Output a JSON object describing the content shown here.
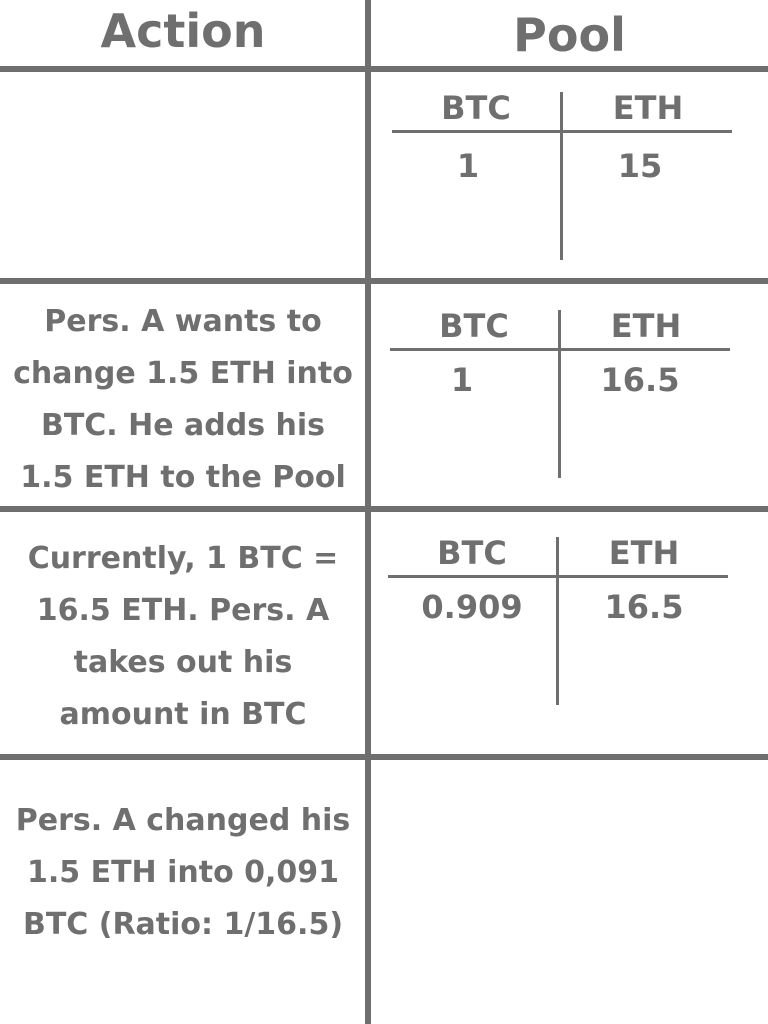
{
  "headers": {
    "action": "Action",
    "pool": "Pool"
  },
  "rows": [
    {
      "action": "",
      "pool": {
        "col1_header": "BTC",
        "col2_header": "ETH",
        "btc": "1",
        "eth": "15"
      }
    },
    {
      "action": "Pers. A wants to\nchange 1.5 ETH into\nBTC. He adds his\n1.5 ETH to the Pool",
      "pool": {
        "col1_header": "BTC",
        "col2_header": "ETH",
        "btc": "1",
        "eth": "16.5"
      }
    },
    {
      "action": "Currently, 1 BTC =\n16.5 ETH. Pers. A\ntakes out his\namount in BTC",
      "pool": {
        "col1_header": "BTC",
        "col2_header": "ETH",
        "btc": "0.909",
        "eth": "16.5"
      }
    },
    {
      "action": "Pers. A changed his\n1.5 ETH into 0,091\nBTC (Ratio: 1/16.5)",
      "pool": null
    }
  ]
}
